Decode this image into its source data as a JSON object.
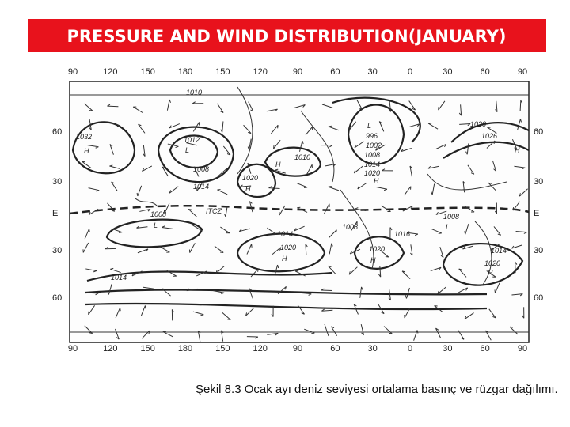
{
  "title": "PRESSURE AND WIND DISTRIBUTION(JANUARY)",
  "map": {
    "top_labels": [
      "90",
      "120",
      "150",
      "180",
      "150",
      "120",
      "90",
      "60",
      "30",
      "0",
      "30",
      "60",
      "90"
    ],
    "bottom_labels": [
      "90",
      "120",
      "150",
      "180",
      "150",
      "120",
      "90",
      "60",
      "30",
      "0",
      "30",
      "60",
      "90"
    ],
    "left_labels": [
      "60",
      "30",
      "E",
      "30",
      "60"
    ],
    "right_labels": [
      "60",
      "30",
      "E",
      "30",
      "60"
    ],
    "pressure_labels": [
      "1010",
      "1032",
      "H",
      "1012",
      "L",
      "1008",
      "1014",
      "1020",
      "H",
      "H",
      "1010",
      "L",
      "996",
      "1002",
      "1008",
      "1014",
      "1020",
      "H",
      "1020",
      "1026",
      "H",
      "ITCZ",
      "1008",
      "L",
      "1008",
      "L",
      "1014",
      "1020",
      "H",
      "1008",
      "1016",
      "1020",
      "H",
      "1014",
      "1020",
      "H",
      "1014"
    ],
    "caption": "Şekil 8.3 Ocak ayı deniz seviyesi ortalama basınç ve rüzgar dağılımı."
  }
}
